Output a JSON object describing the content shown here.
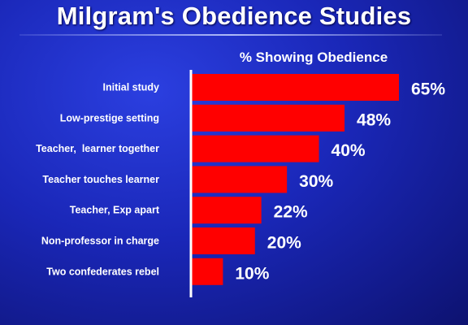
{
  "title": "Milgram's Obedience Studies",
  "colors": {
    "bar": "#ff0000",
    "text": "#ffffff",
    "axis": "#ffffff",
    "background": "#1a27b8"
  },
  "chart_data": {
    "type": "bar",
    "orientation": "horizontal",
    "title": "% Showing Obedience",
    "categories": [
      "Initial study",
      "Low-prestige setting",
      "Teacher,  learner together",
      "Teacher touches learner",
      "Teacher, Exp apart",
      "Non-professor in charge",
      "Two confederates rebel"
    ],
    "values": [
      65,
      48,
      40,
      30,
      22,
      20,
      10
    ],
    "value_labels": [
      "65%",
      "48%",
      "40%",
      "30%",
      "22%",
      "20%",
      "10%"
    ],
    "xlim": [
      0,
      70
    ],
    "grid": false,
    "legend": "none"
  }
}
